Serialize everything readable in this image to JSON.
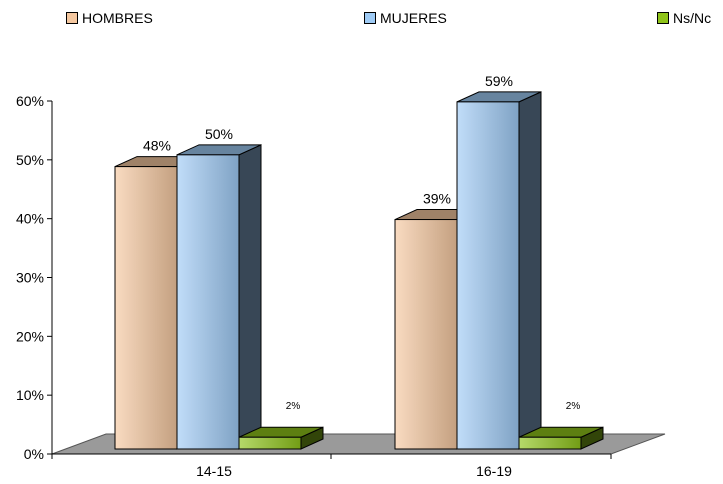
{
  "chart_data": {
    "type": "bar",
    "categories": [
      "14-15",
      "16-19"
    ],
    "series": [
      {
        "name": "HOMBRES",
        "values": [
          48,
          39
        ],
        "labels": [
          "48%",
          "39%"
        ],
        "color": "#f5c8a0"
      },
      {
        "name": "MUJERES",
        "values": [
          50,
          59
        ],
        "labels": [
          "50%",
          "59%"
        ],
        "color": "#9fcbf5"
      },
      {
        "name": "Ns/Nc",
        "values": [
          2,
          2
        ],
        "labels": [
          "2%",
          "2%"
        ],
        "color": "#8fc41a"
      }
    ],
    "ylim": [
      0,
      60
    ],
    "yticks": [
      "0%",
      "10%",
      "20%",
      "30%",
      "40%",
      "50%",
      "60%"
    ],
    "grid": false,
    "legend_position": "top",
    "three_d": true
  }
}
